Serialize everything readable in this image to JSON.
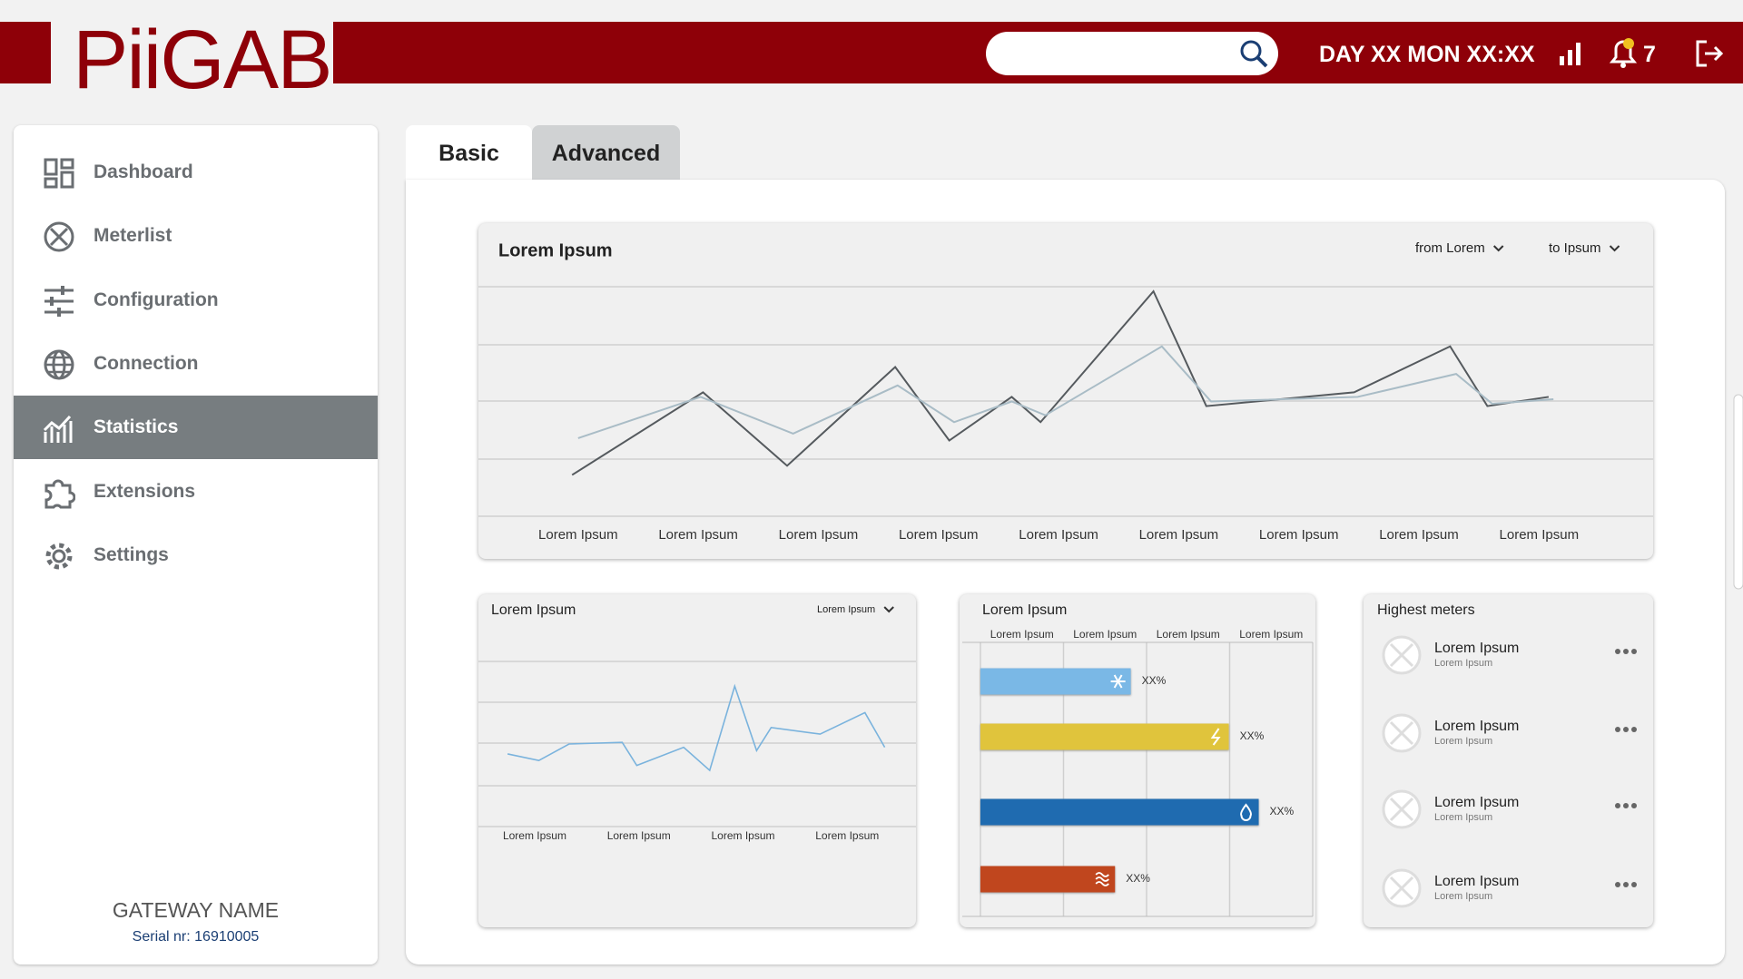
{
  "header": {
    "logo": "PiiGAB",
    "datetime": "DAY XX MON XX:XX",
    "notification_count": 7
  },
  "sidebar": {
    "menu": [
      "Dashboard",
      "Meterlist",
      "Configuration",
      "Connection",
      "Statistics",
      "Extensions",
      "Settings"
    ],
    "active": "Statistics",
    "gateway_name": "GATEWAY NAME",
    "serial": "Serial nr: 16910005"
  },
  "tabs": {
    "items": [
      "Basic",
      "Advanced"
    ],
    "active": "Basic"
  },
  "chart_data": [
    {
      "type": "line",
      "title": "Lorem Ipsum",
      "filters": [
        "from Lorem",
        "to Ipsum"
      ],
      "categories": [
        "Lorem Ipsum",
        "Lorem Ipsum",
        "Lorem Ipsum",
        "Lorem Ipsum",
        "Lorem Ipsum",
        "Lorem Ipsum",
        "Lorem Ipsum",
        "Lorem Ipsum",
        "Lorem Ipsum"
      ],
      "xlim": [
        -0.83,
        8.95
      ],
      "ylim": [
        0,
        100
      ],
      "series": [
        {
          "color": "#555a5e",
          "x": [
            -0.05,
            1.04,
            1.74,
            2.64,
            3.09,
            3.61,
            3.85,
            4.79,
            5.23,
            6.46,
            7.26,
            7.57,
            8.08
          ],
          "values": [
            18,
            54,
            22,
            65,
            33,
            52,
            41,
            98,
            48,
            54,
            74,
            48,
            52
          ]
        },
        {
          "color": "#a9bcc6",
          "x": [
            0,
            1.02,
            1.79,
            2.66,
            3.13,
            3.61,
            3.89,
            4.86,
            5.27,
            6.49,
            7.31,
            7.61,
            8.12
          ],
          "values": [
            34,
            52,
            36,
            57,
            41,
            50,
            44,
            74,
            50,
            52,
            62,
            49,
            51
          ]
        }
      ]
    },
    {
      "type": "line",
      "title": "Lorem Ipsum",
      "filters": [
        "Lorem Ipsum"
      ],
      "categories": [
        "Lorem Ipsum",
        "Lorem Ipsum",
        "Lorem Ipsum",
        "Lorem Ipsum"
      ],
      "xlim": [
        -0.54,
        3.66
      ],
      "ylim": [
        0,
        100
      ],
      "series": [
        {
          "color": "#7ab3dd",
          "x": [
            -0.26,
            0.04,
            0.33,
            0.84,
            0.98,
            1.43,
            1.68,
            1.92,
            2.13,
            2.27,
            2.74,
            3.17,
            3.36
          ],
          "values": [
            44,
            40,
            50,
            51,
            37,
            48,
            34,
            85,
            46,
            60,
            56,
            69,
            48
          ]
        }
      ]
    },
    {
      "type": "hbar",
      "title": "Lorem Ipsum",
      "xticks": [
        {
          "value": 0.5,
          "label": "Lorem Ipsum"
        },
        {
          "value": 1.5,
          "label": "Lorem Ipsum"
        },
        {
          "value": 2.5,
          "label": "Lorem Ipsum"
        },
        {
          "value": 3.5,
          "label": "Lorem Ipsum"
        }
      ],
      "xlim": [
        0,
        4
      ],
      "values": [
        1.81,
        2.99,
        3.35,
        1.62
      ],
      "value_labels": [
        "XX%",
        "XX%",
        "XX%",
        "XX%"
      ],
      "colors": [
        "#7ab8e6",
        "#e0c43c",
        "#1f6bb0",
        "#c0461e"
      ]
    }
  ],
  "highest_meters": {
    "title": "Highest meters",
    "items": [
      {
        "title": "Lorem Ipsum",
        "subtitle": "Lorem Ipsum"
      },
      {
        "title": "Lorem Ipsum",
        "subtitle": "Lorem Ipsum"
      },
      {
        "title": "Lorem Ipsum",
        "subtitle": "Lorem Ipsum"
      },
      {
        "title": "Lorem Ipsum",
        "subtitle": "Lorem Ipsum"
      }
    ]
  }
}
